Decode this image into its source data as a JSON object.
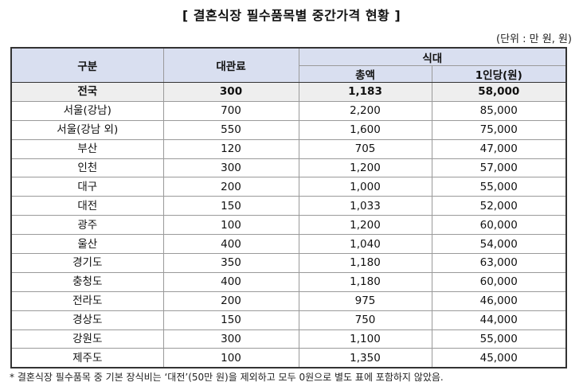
{
  "title": "[ 결혼식장 필수품목별 중간가격 현황 ]",
  "unit": "(단위 : 만 원, 원)",
  "table": {
    "headers": {
      "region": "구분",
      "venue": "대관료",
      "meal_group": "식대",
      "meal_total": "총액",
      "meal_per_person": "1인당(원)"
    },
    "rows": [
      {
        "region": "전국",
        "venue": "300",
        "meal_total": "1,183",
        "meal_per_person": "58,000"
      },
      {
        "region": "서울(강남)",
        "venue": "700",
        "meal_total": "2,200",
        "meal_per_person": "85,000"
      },
      {
        "region": "서울(강남 외)",
        "venue": "550",
        "meal_total": "1,600",
        "meal_per_person": "75,000"
      },
      {
        "region": "부산",
        "venue": "120",
        "meal_total": "705",
        "meal_per_person": "47,000"
      },
      {
        "region": "인천",
        "venue": "300",
        "meal_total": "1,200",
        "meal_per_person": "57,000"
      },
      {
        "region": "대구",
        "venue": "200",
        "meal_total": "1,000",
        "meal_per_person": "55,000"
      },
      {
        "region": "대전",
        "venue": "150",
        "meal_total": "1,033",
        "meal_per_person": "52,000"
      },
      {
        "region": "광주",
        "venue": "100",
        "meal_total": "1,200",
        "meal_per_person": "60,000"
      },
      {
        "region": "울산",
        "venue": "400",
        "meal_total": "1,040",
        "meal_per_person": "54,000"
      },
      {
        "region": "경기도",
        "venue": "350",
        "meal_total": "1,180",
        "meal_per_person": "63,000"
      },
      {
        "region": "충청도",
        "venue": "400",
        "meal_total": "1,180",
        "meal_per_person": "60,000"
      },
      {
        "region": "전라도",
        "venue": "200",
        "meal_total": "975",
        "meal_per_person": "46,000"
      },
      {
        "region": "경상도",
        "venue": "150",
        "meal_total": "750",
        "meal_per_person": "44,000"
      },
      {
        "region": "강원도",
        "venue": "300",
        "meal_total": "1,100",
        "meal_per_person": "55,000"
      },
      {
        "region": "제주도",
        "venue": "100",
        "meal_total": "1,350",
        "meal_per_person": "45,000"
      }
    ]
  },
  "footnote": "* 결혼식장 필수품목 중 기본 장식비는 ‘대전’(50만 원)을 제외하고 모두 0원으로 별도 표에 포함하지 않았음.",
  "colors": {
    "header_bg": "#d9dff0",
    "total_row_bg": "#eeeeee",
    "border": "#333333"
  }
}
